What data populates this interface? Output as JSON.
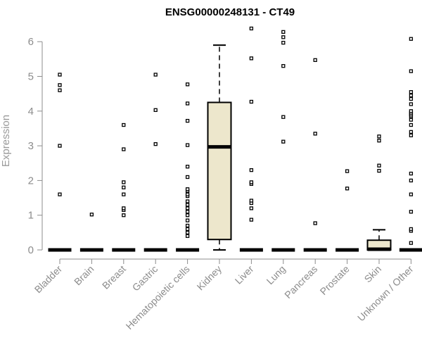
{
  "chart_data": {
    "type": "boxplot",
    "title": "ENSG00000248131 - CT49",
    "ylabel": "Expression",
    "ylim": [
      0,
      6.4
    ],
    "yticks": [
      0,
      1,
      2,
      3,
      4,
      5,
      6
    ],
    "box_fill": "#ede7cc",
    "categories": [
      "Bladder",
      "Brain",
      "Breast",
      "Gastric",
      "Hematopoietic cells",
      "Kidney",
      "Liver",
      "Lung",
      "Pancreas",
      "Prostate",
      "Skin",
      "Unknown / Other"
    ],
    "series": [
      {
        "category": "Bladder",
        "median": 0,
        "q1": 0,
        "q3": 0,
        "whisker_low": 0,
        "whisker_high": 0,
        "outliers": [
          1.6,
          3.0,
          4.6,
          4.75,
          5.05
        ]
      },
      {
        "category": "Brain",
        "median": 0,
        "q1": 0,
        "q3": 0,
        "whisker_low": 0,
        "whisker_high": 0,
        "outliers": [
          1.02
        ]
      },
      {
        "category": "Breast",
        "median": 0,
        "q1": 0,
        "q3": 0,
        "whisker_low": 0,
        "whisker_high": 0,
        "outliers": [
          1.0,
          1.15,
          1.2,
          1.6,
          1.8,
          1.95,
          2.9,
          3.6
        ]
      },
      {
        "category": "Gastric",
        "median": 0,
        "q1": 0,
        "q3": 0,
        "whisker_low": 0,
        "whisker_high": 0,
        "outliers": [
          3.05,
          4.03,
          5.05
        ]
      },
      {
        "category": "Hematopoietic cells",
        "median": 0,
        "q1": 0,
        "q3": 0,
        "whisker_low": 0,
        "whisker_high": 0,
        "outliers": [
          0.4,
          0.5,
          0.6,
          0.7,
          0.85,
          1.0,
          1.1,
          1.2,
          1.3,
          1.4,
          1.55,
          1.6,
          1.7,
          1.75,
          2.1,
          2.4,
          3.02,
          3.72,
          4.22,
          4.77
        ]
      },
      {
        "category": "Kidney",
        "median": 2.97,
        "q1": 0.3,
        "q3": 4.25,
        "whisker_low": 0,
        "whisker_high": 5.9,
        "outliers": []
      },
      {
        "category": "Liver",
        "median": 0,
        "q1": 0,
        "q3": 0,
        "whisker_low": 0,
        "whisker_high": 0,
        "outliers": [
          0.87,
          1.2,
          1.35,
          1.42,
          1.9,
          1.95,
          2.3,
          4.27,
          5.52,
          6.38
        ]
      },
      {
        "category": "Lung",
        "median": 0,
        "q1": 0,
        "q3": 0,
        "whisker_low": 0,
        "whisker_high": 0,
        "outliers": [
          3.12,
          3.83,
          5.3,
          5.97,
          6.13,
          6.28
        ]
      },
      {
        "category": "Pancreas",
        "median": 0,
        "q1": 0,
        "q3": 0,
        "whisker_low": 0,
        "whisker_high": 0,
        "outliers": [
          0.77,
          3.35,
          5.47
        ]
      },
      {
        "category": "Prostate",
        "median": 0,
        "q1": 0,
        "q3": 0,
        "whisker_low": 0,
        "whisker_high": 0,
        "outliers": [
          1.77,
          2.27
        ]
      },
      {
        "category": "Skin",
        "median": 0.02,
        "q1": 0,
        "q3": 0.28,
        "whisker_low": 0,
        "whisker_high": 0.58,
        "outliers": [
          2.28,
          2.43,
          3.15,
          3.27
        ]
      },
      {
        "category": "Unknown / Other",
        "median": 0,
        "q1": 0,
        "q3": 0,
        "whisker_low": 0,
        "whisker_high": 0,
        "outliers": [
          0.2,
          0.55,
          0.6,
          1.1,
          1.6,
          2.0,
          2.2,
          3.3,
          3.4,
          3.6,
          3.75,
          3.85,
          3.9,
          3.95,
          4.0,
          4.2,
          4.35,
          4.45,
          4.55,
          5.15,
          6.08
        ]
      }
    ]
  }
}
